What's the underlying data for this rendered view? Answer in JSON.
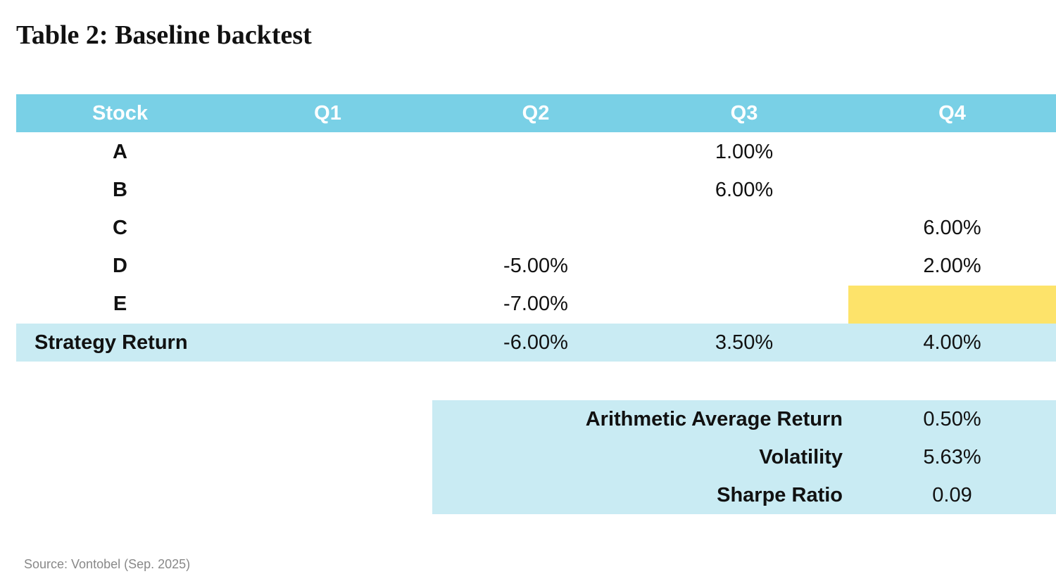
{
  "header": {
    "title": "Table 2: Baseline backtest"
  },
  "table": {
    "columns": [
      "Stock",
      "Q1",
      "Q2",
      "Q3",
      "Q4"
    ],
    "rows": [
      [
        "A",
        null,
        null,
        "1.00%",
        null
      ],
      [
        "B",
        null,
        null,
        "6.00%",
        null
      ],
      [
        "C",
        null,
        null,
        null,
        "6.00%"
      ],
      [
        "D",
        null,
        "-5.00%",
        null,
        "2.00%"
      ],
      [
        "E",
        null,
        "-7.00%",
        null,
        null
      ]
    ],
    "total": [
      "Strategy Return",
      null,
      "-6.00%",
      "3.50%",
      "4.00%"
    ]
  },
  "summary": {
    "rows": [
      [
        "Arithmetic Average Return",
        "0.50%"
      ],
      [
        "Volatility",
        "5.63%"
      ],
      [
        "Sharpe Ratio",
        "0.09"
      ]
    ]
  },
  "footer": {
    "source": "Source: Vontobel (Sep. 2025)"
  }
}
